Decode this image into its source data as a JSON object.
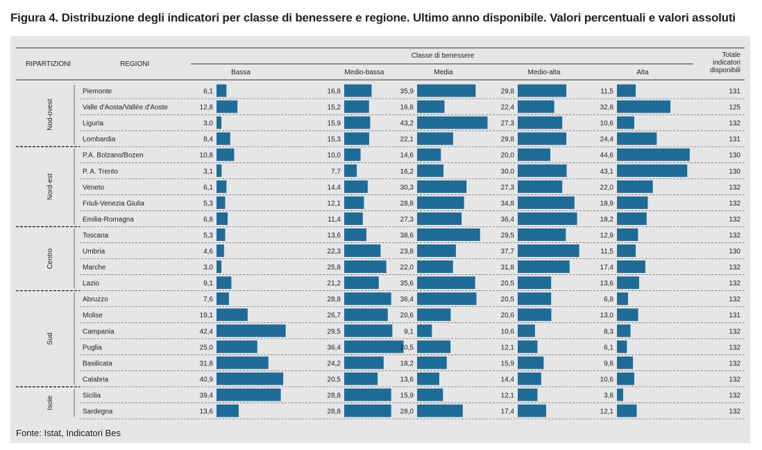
{
  "title": "Figura 4. Distribuzione degli indicatori per classe di benessere e regione. Ultimo anno disponibile. Valori percentuali e valori assoluti",
  "source": "Fonte: Istat, Indicatori Bes",
  "bar_color": "#1f6b98",
  "chart_data": {
    "type": "table",
    "headers": {
      "ripartizioni": "RIPARTIZIONI",
      "regioni": "REGIONI",
      "classe": "Classe di benessere",
      "totale": [
        "Totale",
        "indicatori",
        "disponibili"
      ]
    },
    "classes": [
      "Bassa",
      "Medio-bassa",
      "Media",
      "Medio-alta",
      "Alta"
    ],
    "groups": [
      {
        "name": "Nod-ovest",
        "rows": [
          {
            "region": "Piemonte",
            "values": [
              6.1,
              16.8,
              35.9,
              29.8,
              11.5
            ],
            "total": 131
          },
          {
            "region": "Valle d'Aosta/Vallée d'Aoste",
            "values": [
              12.8,
              15.2,
              16.8,
              22.4,
              32.8
            ],
            "total": 125
          },
          {
            "region": "Liguria",
            "values": [
              3.0,
              15.9,
              43.2,
              27.3,
              10.6
            ],
            "total": 132
          },
          {
            "region": "Lombardia",
            "values": [
              8.4,
              15.3,
              22.1,
              29.8,
              24.4
            ],
            "total": 131
          }
        ]
      },
      {
        "name": "Nord-est",
        "rows": [
          {
            "region": "P.A. Bolzano/Bozen",
            "values": [
              10.8,
              10.0,
              14.6,
              20.0,
              44.6
            ],
            "total": 130
          },
          {
            "region": "P. A. Trento",
            "values": [
              3.1,
              7.7,
              16.2,
              30.0,
              43.1
            ],
            "total": 130
          },
          {
            "region": "Veneto",
            "values": [
              6.1,
              14.4,
              30.3,
              27.3,
              22.0
            ],
            "total": 132
          },
          {
            "region": "Friuli-Venezia Giulia",
            "values": [
              5.3,
              12.1,
              28.8,
              34.8,
              18.9
            ],
            "total": 132
          },
          {
            "region": "Emilia-Romagna",
            "values": [
              6.8,
              11.4,
              27.3,
              36.4,
              18.2
            ],
            "total": 132
          }
        ]
      },
      {
        "name": "Centro",
        "rows": [
          {
            "region": "Toscana",
            "values": [
              5.3,
              13.6,
              38.6,
              29.5,
              12.9
            ],
            "total": 132
          },
          {
            "region": "Umbria",
            "values": [
              4.6,
              22.3,
              23.8,
              37.7,
              11.5
            ],
            "total": 130
          },
          {
            "region": "Marche",
            "values": [
              3.0,
              25.8,
              22.0,
              31.8,
              17.4
            ],
            "total": 132
          },
          {
            "region": "Lazio",
            "values": [
              9.1,
              21.2,
              35.6,
              20.5,
              13.6
            ],
            "total": 132
          }
        ]
      },
      {
        "name": "Sud",
        "rows": [
          {
            "region": "Abruzzo",
            "values": [
              7.6,
              28.8,
              36.4,
              20.5,
              6.8
            ],
            "total": 132
          },
          {
            "region": "Molise",
            "values": [
              19.1,
              26.7,
              20.6,
              20.6,
              13.0
            ],
            "total": 131
          },
          {
            "region": "Campania",
            "values": [
              42.4,
              29.5,
              9.1,
              10.6,
              8.3
            ],
            "total": 132
          },
          {
            "region": "Puglia",
            "values": [
              25.0,
              36.4,
              20.5,
              12.1,
              6.1
            ],
            "total": 132
          },
          {
            "region": "Basilicata",
            "values": [
              31.8,
              24.2,
              18.2,
              15.9,
              9.8
            ],
            "total": 132
          },
          {
            "region": "Calabria",
            "values": [
              40.9,
              20.5,
              13.6,
              14.4,
              10.6
            ],
            "total": 132
          }
        ]
      },
      {
        "name": "Isole",
        "rows": [
          {
            "region": "Sicilia",
            "values": [
              39.4,
              28.8,
              15.9,
              12.1,
              3.8
            ],
            "total": 132
          },
          {
            "region": "Sardegna",
            "values": [
              13.6,
              28.8,
              28.0,
              17.4,
              12.1
            ],
            "total": 132
          }
        ]
      }
    ]
  }
}
